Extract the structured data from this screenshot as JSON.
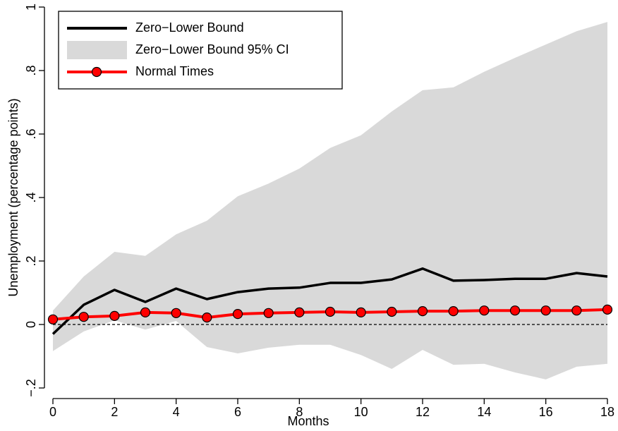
{
  "chart_data": {
    "type": "line",
    "x_label": "Months",
    "y_label": "Unemployment (percentage points)",
    "x": [
      0,
      1,
      2,
      3,
      4,
      5,
      6,
      7,
      8,
      9,
      10,
      11,
      12,
      13,
      14,
      15,
      16,
      17,
      18
    ],
    "series": [
      {
        "name": "Zero−Lower Bound",
        "kind": "line",
        "color": "#000000",
        "values": [
          -0.03,
          0.062,
          0.109,
          0.071,
          0.113,
          0.08,
          0.102,
          0.113,
          0.116,
          0.131,
          0.131,
          0.142,
          0.176,
          0.138,
          0.14,
          0.144,
          0.144,
          0.162,
          0.151
        ]
      },
      {
        "name": "Zero−Lower Bound 95% CI",
        "kind": "band",
        "color": "#d9d9d9",
        "lower": [
          -0.084,
          -0.022,
          0.013,
          -0.016,
          0.011,
          -0.071,
          -0.091,
          -0.073,
          -0.064,
          -0.064,
          -0.096,
          -0.14,
          -0.08,
          -0.127,
          -0.124,
          -0.151,
          -0.173,
          -0.133,
          -0.124
        ],
        "upper": [
          0.044,
          0.151,
          0.229,
          0.216,
          0.284,
          0.327,
          0.404,
          0.444,
          0.491,
          0.556,
          0.596,
          0.671,
          0.738,
          0.747,
          0.796,
          0.84,
          0.882,
          0.924,
          0.953
        ]
      },
      {
        "name": "Normal Times",
        "kind": "line-markers",
        "color": "#ff0000",
        "values": [
          0.016,
          0.024,
          0.027,
          0.038,
          0.036,
          0.022,
          0.033,
          0.036,
          0.038,
          0.04,
          0.038,
          0.04,
          0.042,
          0.042,
          0.044,
          0.044,
          0.044,
          0.044,
          0.047
        ]
      }
    ],
    "legend_order": [
      0,
      1,
      2
    ],
    "reference_line": 0,
    "xlim": [
      0,
      18
    ],
    "xticks": [
      0,
      2,
      4,
      6,
      8,
      10,
      12,
      14,
      16,
      18
    ],
    "ylim": [
      -0.2,
      1
    ],
    "yticks": [
      {
        "value": -0.2,
        "label": "−.2"
      },
      0,
      {
        "value": 0.2,
        "label": ".2"
      },
      {
        "value": 0.4,
        "label": ".4"
      },
      {
        "value": 0.6,
        "label": ".6"
      },
      {
        "value": 0.8,
        "label": ".8"
      },
      1
    ],
    "legend_position": "upper left"
  }
}
